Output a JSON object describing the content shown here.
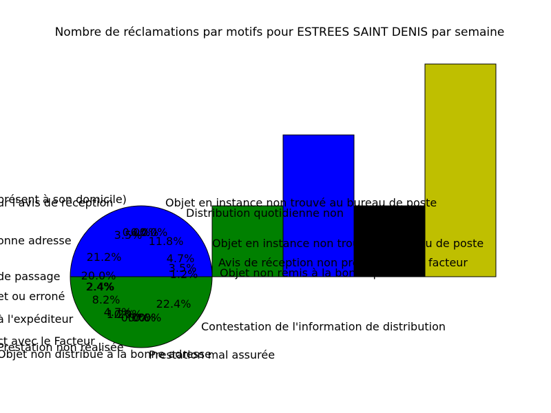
{
  "chart_data": {
    "title": "Nombre de réclamations par motifs pour ESTREES SAINT DENIS par semaine",
    "type": "bar",
    "bar_values": [
      1,
      2,
      1,
      3
    ],
    "bar_colors": [
      "#008000",
      "#0000ff",
      "#000000",
      "#bfbf00"
    ],
    "ylim": [
      0,
      3
    ],
    "pie": {
      "slices": [
        {
          "label": "Contestation de l'information de distribution",
          "value": 11.8,
          "color": "#0000ff"
        },
        {
          "label": "Objet en instance non trouvé au bureau de poste",
          "value": 4.7,
          "color": "#0000ff"
        },
        {
          "label": "Avis de réception non présenté par le facteur",
          "value": 3.5,
          "color": "#0000ff"
        },
        {
          "label": "Objet non remis à la bonne personne",
          "value": 1.2,
          "color": "#0000ff"
        },
        {
          "label": "Objet non distribué à la bonne adresse",
          "value": 22.4,
          "color": "#008000"
        },
        {
          "label": "Prestation mal assurée",
          "value": 0.0,
          "color": "#008000"
        },
        {
          "label": "Objet non distribué",
          "value": 0.0,
          "color": "#008000"
        },
        {
          "label": "Problème de contact avec le Facteur",
          "value": 0.0,
          "color": "#008000"
        },
        {
          "label": "Objet retourné à l'expéditeur",
          "value": 0.0,
          "color": "#008000"
        },
        {
          "label": "Prestation non réalisée",
          "value": 2.4,
          "color": "#008000"
        },
        {
          "label": "Défaut d'avis de passage",
          "value": 1.2,
          "color": "#008000"
        },
        {
          "label": "Adressage incomplet ou erroné",
          "value": 4.7,
          "color": "#008000"
        },
        {
          "label": "Avis de passage",
          "value": 8.2,
          "color": "#008000"
        },
        {
          "label": "Objet non distribué à la bonne adresse",
          "value": 2.4,
          "color": "#008000"
        },
        {
          "label": "Défaut d'avis de passage",
          "value": 20.0,
          "color": "#008000"
        },
        {
          "label": "Objet non distribué à la bonne adresse",
          "value": 21.2,
          "color": "#0000ff"
        },
        {
          "label": "Défaut de signature de l'avis de réception",
          "value": 3.5,
          "color": "#0000ff"
        },
        {
          "label": "Objet en instance",
          "value": 0.0,
          "color": "#0000ff"
        },
        {
          "label": "Distribution quotidienne non assurée",
          "value": 0.0,
          "color": "#0000ff"
        },
        {
          "label": "Avis de réception non présenté",
          "value": 0.0,
          "color": "#0000ff"
        }
      ]
    },
    "text_fragments": [
      {
        "text": "présent à son domicile)",
        "name": "fragment-domicile"
      },
      {
        "text": "ur l'avis de réception",
        "name": "fragment-avis-reception"
      },
      {
        "text": "onne adresse",
        "name": "fragment-bonne-adresse"
      },
      {
        "text": "de passage",
        "name": "fragment-de-passage"
      },
      {
        "text": "et ou erroné",
        "name": "fragment-errone"
      },
      {
        "text": "à l'expéditeur",
        "name": "fragment-expediteur"
      },
      {
        "text": "ct avec le Facteur",
        "name": "fragment-facteur"
      },
      {
        "text": "Prestation non réalisée",
        "name": "fragment-prestation-non-realisee"
      },
      {
        "text": "Objet non distribué à la bonne adresse",
        "name": "fragment-objet-non-distribue"
      },
      {
        "text": "Prestation mal assurée",
        "name": "fragment-prestation-mal-assuree"
      },
      {
        "text": "Contestation de l'information de distribution",
        "name": "fragment-contestation"
      },
      {
        "text": "Objet en instance non trouvé au bureau de poste",
        "name": "fragment-objet-instance"
      },
      {
        "text": "Distribution quotidienne non",
        "name": "fragment-distribution-quotidienne"
      },
      {
        "text": "Avis de réception non présenté par le facteur",
        "name": "fragment-avis-non-presente"
      },
      {
        "text": "Objet non remis à la bonne personne",
        "name": "fragment-objet-non-remis"
      },
      {
        "text": "Objet en instance non trouvé au bureau de poste",
        "name": "fragment-objet-instance-2"
      }
    ]
  }
}
